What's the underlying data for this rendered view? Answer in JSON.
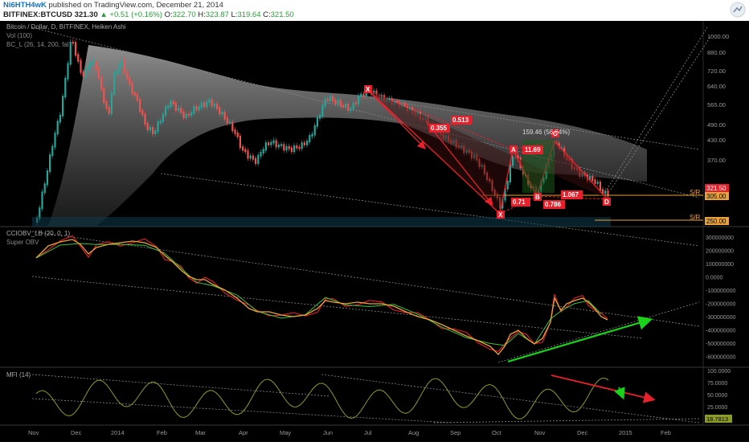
{
  "header": {
    "author": "Ni6HTH4wK",
    "published": "published on TradingView.com, December 21, 2014",
    "symbol": "BITFINEX:BTCUSD",
    "last": "321.30",
    "change": "+0.51 (+0.16%)",
    "open_label": "O:",
    "open": "322.70",
    "high_label": "H:",
    "high": "323.87",
    "low_label": "L:",
    "low": "319.64",
    "close_label": "C:",
    "close": "321.50"
  },
  "panes": {
    "main": {
      "title": "Bitcoin / Dollar, D, BITFINEX, Heiken Ashi",
      "vol": "Vol (100)",
      "bc": "BC_L (26, 14, 200, fal",
      "price_ticks": [
        "1000.00",
        "880.00",
        "720.00",
        "640.00",
        "565.00",
        "490.00",
        "430.00",
        "370.00"
      ],
      "last_price_label": "321.50",
      "sr1_value": "305.00",
      "sr2_value": "250.00",
      "sr_label": "S/R"
    },
    "obv": {
      "title": "CCIOBV_LB (20, 0, 1)",
      "subtitle": "Super OBV",
      "ticks": [
        "300000000",
        "200000000",
        "100000000",
        "0.0000",
        "-100000000",
        "-200000000",
        "-300000000",
        "-400000000",
        "-500000000",
        "-600000000"
      ]
    },
    "mfi": {
      "title": "MFI (14)",
      "ticks": [
        "100.0000",
        "75.0000",
        "50.0000",
        "25.0000"
      ],
      "last_value": "18.7813"
    }
  },
  "time_labels": [
    "Nov",
    "Dec",
    "2014",
    "Feb",
    "Mar",
    "Apr",
    "May",
    "Jun",
    "Jul",
    "Aug",
    "Sep",
    "Oct",
    "Nov",
    "Dec",
    "2015",
    "Feb"
  ],
  "annotations": {
    "points": {
      "X1": "X",
      "X2": "X",
      "A": "A",
      "B": "B",
      "C": "C",
      "D": "D"
    },
    "ratios": {
      "r1": "0.513",
      "r2": "0.355",
      "r3": "11.69",
      "r4": "0.71",
      "r5": "0.786",
      "r6": "1.067"
    },
    "measure": "159.46 (56.64%)"
  },
  "colors": {
    "bg": "#000000",
    "up": "#26a69a",
    "down": "#ef5350",
    "pattern": "#e8202b",
    "sr_line": "#e8a33a",
    "green_arrow": "#19d219",
    "obv_line": "#e8a33a"
  }
}
